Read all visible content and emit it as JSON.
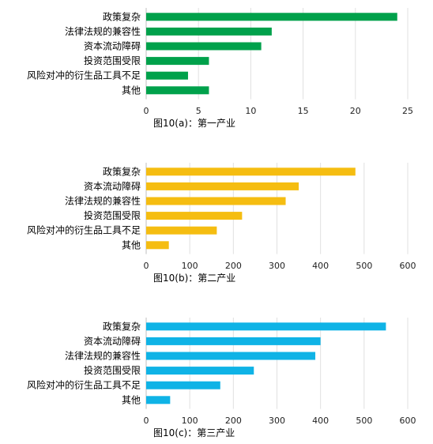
{
  "chart_data": [
    {
      "type": "bar",
      "orientation": "horizontal",
      "caption": "图10(a)：第一产业",
      "color": "#00a14b",
      "categories": [
        "政策复杂",
        "法律法规的兼容性",
        "资本流动障碍",
        "投资范围受限",
        "风险对冲的衍生品工具不足",
        "其他"
      ],
      "values": [
        24,
        12,
        11,
        6,
        4,
        6
      ],
      "xlim": [
        0,
        25
      ],
      "xticks": [
        "0",
        "5",
        "10",
        "15",
        "20",
        "25"
      ],
      "grid": true,
      "legend": "none"
    },
    {
      "type": "bar",
      "orientation": "horizontal",
      "caption": "图10(b)：第二产业",
      "color": "#f5bd11",
      "categories": [
        "政策复杂",
        "资本流动障碍",
        "法律法规的兼容性",
        "投资范围受限",
        "风险对冲的衍生品工具不足",
        "其他"
      ],
      "values": [
        480,
        350,
        320,
        220,
        162,
        52
      ],
      "xlim": [
        0,
        600
      ],
      "xticks": [
        "0",
        "100",
        "200",
        "300",
        "400",
        "500",
        "600"
      ],
      "grid": true,
      "legend": "none"
    },
    {
      "type": "bar",
      "orientation": "horizontal",
      "caption": "图10(c)：第三产业",
      "color": "#0fb3e6",
      "categories": [
        "政策复杂",
        "资本流动障碍",
        "法律法规的兼容性",
        "投资范围受限",
        "风险对冲的衍生品工具不足",
        "其他"
      ],
      "values": [
        550,
        400,
        388,
        247,
        170,
        55
      ],
      "xlim": [
        0,
        600
      ],
      "xticks": [
        "0",
        "100",
        "200",
        "300",
        "400",
        "500",
        "600"
      ],
      "grid": true,
      "legend": "none"
    }
  ]
}
